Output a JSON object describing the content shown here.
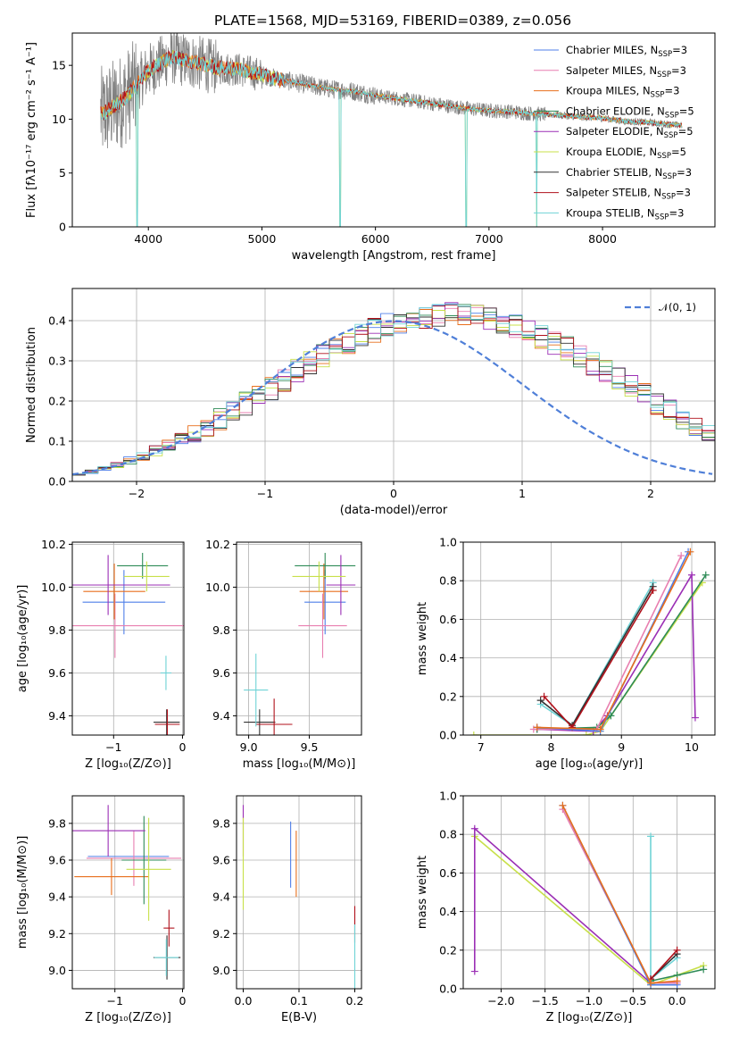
{
  "colors": {
    "chabrier_miles": "#4f7fe8",
    "salpeter_miles": "#e87fb0",
    "kroupa_miles": "#e86f1c",
    "chabrier_elodie": "#2e8b57",
    "salpeter_elodie": "#9b2fb5",
    "kroupa_elodie": "#c8e04a",
    "chabrier_stelib": "#333333",
    "salpeter_stelib": "#b0111b",
    "kroupa_stelib": "#6fd3d6",
    "observed": "#808080",
    "gaussian": "#4f7fd8"
  },
  "legend_labels": [
    {
      "base": "Chabrier MILES, N",
      "sub": "SSP",
      "tail": "=3",
      "color": "#4f7fe8"
    },
    {
      "base": "Salpeter MILES, N",
      "sub": "SSP",
      "tail": "=3",
      "color": "#e87fb0"
    },
    {
      "base": "Kroupa MILES, N",
      "sub": "SSP",
      "tail": "=3",
      "color": "#e86f1c"
    },
    {
      "base": "Chabrier ELODIE, N",
      "sub": "SSP",
      "tail": "=5",
      "color": "#2e8b57"
    },
    {
      "base": "Salpeter ELODIE, N",
      "sub": "SSP",
      "tail": "=5",
      "color": "#9b2fb5"
    },
    {
      "base": "Kroupa ELODIE, N",
      "sub": "SSP",
      "tail": "=5",
      "color": "#c8e04a"
    },
    {
      "base": "Chabrier STELIB, N",
      "sub": "SSP",
      "tail": "=3",
      "color": "#333333"
    },
    {
      "base": "Salpeter STELIB, N",
      "sub": "SSP",
      "tail": "=3",
      "color": "#b0111b"
    },
    {
      "base": "Kroupa STELIB, N",
      "sub": "SSP",
      "tail": "=3",
      "color": "#6fd3d6"
    }
  ],
  "chart_data": [
    {
      "type": "line",
      "title": "PLATE=1568, MJD=53169, FIBERID=0389, z=0.056",
      "xlabel": "wavelength [Angstrom, rest frame]",
      "ylabel": "Flux [fλ10⁻¹⁷ erg cm⁻² s⁻¹ A⁻¹]",
      "xlim": [
        3330,
        8990
      ],
      "ylim": [
        0,
        18
      ],
      "xticks": [
        4000,
        5000,
        6000,
        7000,
        8000
      ],
      "yticks": [
        0,
        5,
        10,
        15
      ],
      "spectrum_shape": [
        [
          3600,
          10.5
        ],
        [
          3800,
          12.0
        ],
        [
          4000,
          14.5
        ],
        [
          4200,
          15.8
        ],
        [
          4400,
          15.3
        ],
        [
          4600,
          14.8
        ],
        [
          4800,
          14.6
        ],
        [
          5000,
          14.1
        ],
        [
          5200,
          13.6
        ],
        [
          5400,
          13.2
        ],
        [
          5600,
          12.8
        ],
        [
          5800,
          12.6
        ],
        [
          6000,
          12.2
        ],
        [
          6200,
          11.9
        ],
        [
          6400,
          11.6
        ],
        [
          6600,
          11.3
        ],
        [
          6800,
          11.0
        ],
        [
          7000,
          10.8
        ],
        [
          7200,
          10.7
        ],
        [
          7400,
          10.5
        ],
        [
          7600,
          10.4
        ],
        [
          7800,
          10.2
        ],
        [
          8000,
          10.1
        ],
        [
          8200,
          9.8
        ],
        [
          8400,
          9.7
        ],
        [
          8600,
          9.5
        ],
        [
          8700,
          9.4
        ]
      ],
      "dips": [
        [
          3900,
          0.0
        ],
        [
          5690,
          0.0
        ],
        [
          6800,
          0.0
        ],
        [
          7420,
          0.0
        ]
      ],
      "legend": "top-right"
    },
    {
      "type": "line",
      "xlabel": "(data-model)/error",
      "ylabel": "Normed distribution",
      "xlim": [
        -2.5,
        2.5
      ],
      "ylim": [
        0,
        0.48
      ],
      "xticks": [
        -2,
        -1,
        0,
        1,
        2
      ],
      "yticks": [
        0.0,
        0.1,
        0.2,
        0.3,
        0.4
      ],
      "legend_label": "𝒩(0, 1)",
      "gaussian": {
        "mean": 0,
        "sigma": 1
      },
      "bin_width": 0.1,
      "histogram_base": [
        0.018,
        0.024,
        0.032,
        0.042,
        0.052,
        0.064,
        0.076,
        0.09,
        0.104,
        0.118,
        0.136,
        0.154,
        0.172,
        0.192,
        0.212,
        0.232,
        0.254,
        0.274,
        0.294,
        0.312,
        0.33,
        0.346,
        0.362,
        0.376,
        0.388,
        0.398,
        0.404,
        0.41,
        0.414,
        0.416,
        0.414,
        0.41,
        0.404,
        0.396,
        0.386,
        0.374,
        0.36,
        0.346,
        0.33,
        0.312,
        0.294,
        0.276,
        0.256,
        0.236,
        0.214,
        0.194,
        0.174,
        0.156,
        0.138,
        0.12,
        0.104,
        0.09,
        0.076,
        0.064,
        0.054,
        0.044,
        0.036,
        0.028,
        0.024,
        0.02,
        0.018,
        0.016,
        0.014,
        0.012,
        0.011,
        0.01,
        0.009,
        0.008,
        0.008,
        0.007,
        0.007
      ]
    },
    {
      "type": "scatter",
      "xlabel": "Z [log₁₀(Z/Z⊙)]",
      "ylabel": "age  [log₁₀(age/yr)]",
      "xlim": [
        -1.6,
        0.02
      ],
      "ylim": [
        9.31,
        10.21
      ],
      "xticks": [
        -1,
        0
      ],
      "yticks": [
        9.4,
        9.6,
        9.8,
        10.0,
        10.2
      ],
      "points": [
        {
          "c": "#4f7fe8",
          "x": -0.85,
          "xerr": 0.6,
          "y": 9.93,
          "yerr": 0.15
        },
        {
          "c": "#e87fb0",
          "x": -0.98,
          "xerr": 1.0,
          "y": 9.82,
          "yerr": 0.15
        },
        {
          "c": "#e86f1c",
          "x": -0.99,
          "xerr": 0.45,
          "y": 9.98,
          "yerr": 0.13
        },
        {
          "c": "#2e8b57",
          "x": -0.58,
          "xerr": 0.37,
          "y": 10.1,
          "yerr": 0.06
        },
        {
          "c": "#9b2fb5",
          "x": -1.08,
          "xerr": 0.9,
          "y": 10.01,
          "yerr": 0.14
        },
        {
          "c": "#c8e04a",
          "x": -0.52,
          "xerr": 0.33,
          "y": 10.05,
          "yerr": 0.07
        },
        {
          "c": "#333333",
          "x": -0.23,
          "xerr": 0.19,
          "y": 9.37,
          "yerr": 0.06
        },
        {
          "c": "#b0111b",
          "x": -0.22,
          "xerr": 0.18,
          "y": 9.36,
          "yerr": 0.07
        },
        {
          "c": "#6fd3d6",
          "x": -0.24,
          "xerr": 0.08,
          "y": 9.6,
          "yerr": 0.08
        }
      ]
    },
    {
      "type": "scatter",
      "xlabel": "mass [log₁₀(M/M⊙)]",
      "ylabel": "",
      "xlim": [
        8.9,
        9.93
      ],
      "ylim": [
        9.31,
        10.21
      ],
      "xticks": [
        9.0,
        9.5
      ],
      "yticks": [
        9.4,
        9.6,
        9.8,
        10.0,
        10.2
      ],
      "points": [
        {
          "c": "#4f7fe8",
          "x": 9.63,
          "xerr": 0.17,
          "y": 9.93,
          "yerr": 0.15
        },
        {
          "c": "#e87fb0",
          "x": 9.61,
          "xerr": 0.2,
          "y": 9.82,
          "yerr": 0.15
        },
        {
          "c": "#e86f1c",
          "x": 9.62,
          "xerr": 0.2,
          "y": 9.98,
          "yerr": 0.13
        },
        {
          "c": "#2e8b57",
          "x": 9.63,
          "xerr": 0.25,
          "y": 10.1,
          "yerr": 0.06
        },
        {
          "c": "#9b2fb5",
          "x": 9.76,
          "xerr": 0.12,
          "y": 10.01,
          "yerr": 0.14
        },
        {
          "c": "#c8e04a",
          "x": 9.58,
          "xerr": 0.22,
          "y": 10.05,
          "yerr": 0.07
        },
        {
          "c": "#333333",
          "x": 9.09,
          "xerr": 0.13,
          "y": 9.37,
          "yerr": 0.06
        },
        {
          "c": "#b0111b",
          "x": 9.21,
          "xerr": 0.15,
          "y": 9.36,
          "yerr": 0.12
        },
        {
          "c": "#6fd3d6",
          "x": 9.06,
          "xerr": 0.1,
          "y": 9.52,
          "yerr": 0.17
        }
      ]
    },
    {
      "type": "line",
      "xlabel": "age  [log₁₀(age/yr)]",
      "ylabel": "mass weight",
      "xlim": [
        6.75,
        10.33
      ],
      "ylim": [
        0,
        1.0
      ],
      "xticks": [
        7,
        8,
        9,
        10
      ],
      "yticks": [
        0.0,
        0.2,
        0.4,
        0.6,
        0.8,
        1.0
      ],
      "series": [
        {
          "c": "#c8e04a",
          "x": [
            6.9,
            8.5,
            8.7,
            10.15
          ],
          "y": [
            0.0,
            0.0,
            0.02,
            0.79
          ]
        },
        {
          "c": "#9b2fb5",
          "x": [
            7.8,
            8.6,
            8.8,
            10.0,
            10.05
          ],
          "y": [
            0.03,
            0.02,
            0.1,
            0.83,
            0.09
          ]
        },
        {
          "c": "#2e8b57",
          "x": [
            7.8,
            8.65,
            8.85,
            10.2
          ],
          "y": [
            0.03,
            0.04,
            0.1,
            0.83
          ]
        },
        {
          "c": "#6fd3d6",
          "x": [
            7.85,
            8.3,
            9.45
          ],
          "y": [
            0.16,
            0.05,
            0.79
          ]
        },
        {
          "c": "#333333",
          "x": [
            7.85,
            8.3,
            9.45
          ],
          "y": [
            0.18,
            0.05,
            0.77
          ]
        },
        {
          "c": "#b0111b",
          "x": [
            7.9,
            8.3,
            9.45
          ],
          "y": [
            0.2,
            0.04,
            0.75
          ]
        },
        {
          "c": "#e87fb0",
          "x": [
            7.75,
            8.65,
            9.85
          ],
          "y": [
            0.03,
            0.03,
            0.93
          ]
        },
        {
          "c": "#4f7fe8",
          "x": [
            7.8,
            8.7,
            9.95
          ],
          "y": [
            0.04,
            0.02,
            0.95
          ]
        },
        {
          "c": "#e86f1c",
          "x": [
            7.8,
            8.7,
            9.98
          ],
          "y": [
            0.04,
            0.03,
            0.95
          ]
        }
      ]
    },
    {
      "type": "scatter",
      "xlabel": "Z [log₁₀(Z/Z⊙)]",
      "ylabel": "mass [log₁₀(M/M⊙)]",
      "xlim": [
        -1.63,
        0.02
      ],
      "ylim": [
        8.9,
        9.95
      ],
      "xticks": [
        -1,
        0
      ],
      "yticks": [
        9.0,
        9.2,
        9.4,
        9.6,
        9.8
      ],
      "points": [
        {
          "c": "#4f7fe8",
          "x": -0.8,
          "xerr": 0.6,
          "y": 9.62,
          "yerr": 0.0
        },
        {
          "c": "#e87fb0",
          "x": -0.72,
          "xerr": 0.7,
          "y": 9.61,
          "yerr": 0.15
        },
        {
          "c": "#e86f1c",
          "x": -1.05,
          "xerr": 0.55,
          "y": 9.51,
          "yerr": 0.1
        },
        {
          "c": "#2e8b57",
          "x": -0.57,
          "xerr": 0.33,
          "y": 9.6,
          "yerr": 0.24
        },
        {
          "c": "#9b2fb5",
          "x": -1.1,
          "xerr": 0.55,
          "y": 9.76,
          "yerr": 0.14
        },
        {
          "c": "#c8e04a",
          "x": -0.5,
          "xerr": 0.33,
          "y": 9.55,
          "yerr": 0.28
        },
        {
          "c": "#333333",
          "x": -0.23,
          "xerr": 0.2,
          "y": 9.07,
          "yerr": 0.12
        },
        {
          "c": "#b0111b",
          "x": -0.2,
          "xerr": 0.08,
          "y": 9.23,
          "yerr": 0.1
        },
        {
          "c": "#6fd3d6",
          "x": -0.24,
          "xerr": 0.18,
          "y": 9.07,
          "yerr": 0.1
        }
      ]
    },
    {
      "type": "scatter",
      "xlabel": "E(B-V)",
      "ylabel": "",
      "xlim": [
        -0.012,
        0.212
      ],
      "ylim": [
        8.9,
        9.95
      ],
      "xticks": [
        0.0,
        0.1,
        0.2
      ],
      "yticks": [
        9.0,
        9.2,
        9.4,
        9.6,
        9.8
      ],
      "points": [
        {
          "c": "#4f7fe8",
          "x": 0.085,
          "xerr": 0.0,
          "y": 9.63,
          "yerr": 0.18
        },
        {
          "c": "#e86f1c",
          "x": 0.095,
          "xerr": 0.0,
          "y": 9.58,
          "yerr": 0.18
        },
        {
          "c": "#b0111b",
          "x": 0.2,
          "xerr": 0.0,
          "y": 9.25,
          "yerr": 0.1
        },
        {
          "c": "#6fd3d6",
          "x": 0.2,
          "xerr": 0.0,
          "y": 9.07,
          "yerr": 0.18
        },
        {
          "c": "#9b2fb5",
          "x": 0.0,
          "xerr": 0.0,
          "y": 9.76,
          "yerr": 0.14
        },
        {
          "c": "#c8e04a",
          "x": 0.0,
          "xerr": 0.0,
          "y": 9.58,
          "yerr": 0.25
        }
      ]
    },
    {
      "type": "line",
      "xlabel": "Z [log₁₀(Z/Z⊙)]",
      "ylabel": "mass weight",
      "xlim": [
        -2.43,
        0.43
      ],
      "ylim": [
        0,
        1.0
      ],
      "xticks": [
        -2.0,
        -1.5,
        -1.0,
        -0.5,
        0.0
      ],
      "yticks": [
        0.0,
        0.2,
        0.4,
        0.6,
        0.8,
        1.0
      ],
      "series": [
        {
          "c": "#c8e04a",
          "x": [
            -2.3,
            -0.3,
            0.0,
            0.3
          ],
          "y": [
            0.79,
            0.02,
            0.07,
            0.12
          ]
        },
        {
          "c": "#9b2fb5",
          "x": [
            -2.3,
            -2.3,
            -0.3,
            0.0
          ],
          "y": [
            0.09,
            0.83,
            0.03,
            0.03
          ]
        },
        {
          "c": "#2e8b57",
          "x": [
            -0.3,
            0.0,
            0.3
          ],
          "y": [
            0.04,
            0.07,
            0.1
          ]
        },
        {
          "c": "#6fd3d6",
          "x": [
            -0.3,
            -0.3,
            0.0
          ],
          "y": [
            0.79,
            0.05,
            0.16
          ]
        },
        {
          "c": "#333333",
          "x": [
            -0.3,
            0.0
          ],
          "y": [
            0.05,
            0.18
          ]
        },
        {
          "c": "#b0111b",
          "x": [
            -0.3,
            0.0
          ],
          "y": [
            0.05,
            0.2
          ]
        },
        {
          "c": "#e87fb0",
          "x": [
            -1.3,
            -0.3,
            0.0
          ],
          "y": [
            0.93,
            0.03,
            0.03
          ]
        },
        {
          "c": "#4f7fe8",
          "x": [
            -1.3,
            -0.3,
            0.0
          ],
          "y": [
            0.95,
            0.02,
            0.02
          ]
        },
        {
          "c": "#e86f1c",
          "x": [
            -1.3,
            -0.3,
            0.0
          ],
          "y": [
            0.95,
            0.03,
            0.04
          ]
        }
      ]
    }
  ]
}
